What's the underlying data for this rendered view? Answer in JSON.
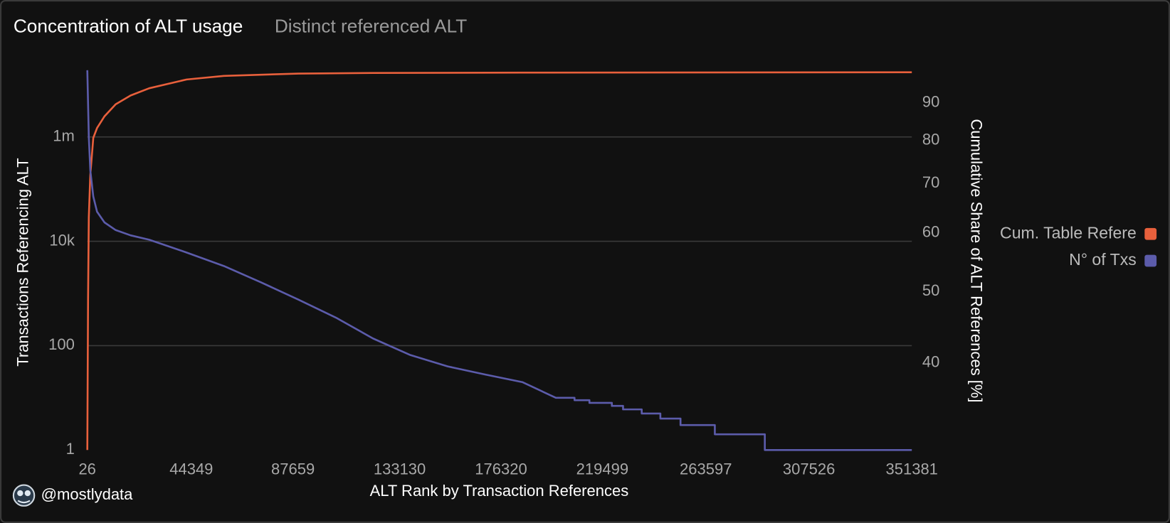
{
  "chart_data": {
    "type": "line",
    "title": "Concentration of ALT usage",
    "subtitle": "Distinct referenced ALT",
    "x_label": "ALT Rank by Transaction References",
    "y_label": "Transactions Referencing ALT",
    "y2_label": "Cumulative Share of ALT References [%]",
    "footer": "@mostlydata",
    "xlim": [
      26,
      351381
    ],
    "xticks": [
      26,
      44349,
      87659,
      133130,
      176320,
      219499,
      263597,
      307526,
      351381
    ],
    "ylim": [
      1,
      20000000
    ],
    "ylog": true,
    "yticks": [
      1,
      100,
      {
        "value": 10000,
        "label": "10k"
      },
      {
        "value": 1000000,
        "label": "1m"
      }
    ],
    "y2lim": [
      30.5,
      100
    ],
    "y2log": true,
    "y2ticks": [
      40,
      50,
      60,
      70,
      80,
      90
    ],
    "grid": true,
    "legend": "right",
    "series": [
      {
        "name": "Cum. Table Refere",
        "color": "#e8603c",
        "axis": "y2",
        "x": [
          26,
          344,
          662,
          1298,
          2570,
          4160,
          7339,
          12109,
          18468,
          26417,
          42315,
          58213,
          90010,
          121806,
          185398,
          351381
        ],
        "values": [
          30.5,
          48.9,
          63.0,
          71.9,
          80.7,
          83.2,
          86.3,
          89.6,
          92.1,
          94.2,
          96.8,
          97.9,
          98.6,
          98.8,
          98.9,
          99.0
        ]
      },
      {
        "name": "N° of Txs",
        "color": "#5c5cab",
        "x": [
          26,
          662,
          1298,
          2570,
          4160,
          7339,
          12109,
          18468,
          26417,
          42315,
          58213,
          74111,
          90010,
          105908,
          121806,
          137704,
          153602,
          169500,
          185398,
          199700,
          207650,
          207650,
          214000,
          214000,
          223560,
          223560,
          228330,
          228330,
          236280,
          236280,
          244230,
          244230,
          252810,
          252810,
          267440,
          267440,
          288740,
          288740,
          351381
        ],
        "values": [
          19000000,
          1000000,
          230000,
          72000,
          37000,
          23000,
          16400,
          13000,
          10700,
          6100,
          3360,
          1630,
          760,
          345,
          137,
          66,
          40,
          28,
          20,
          10,
          10,
          9,
          9,
          8,
          8,
          7,
          7,
          6,
          6,
          5,
          5,
          4,
          4,
          3,
          3,
          2,
          2,
          1,
          1
        ]
      }
    ]
  }
}
